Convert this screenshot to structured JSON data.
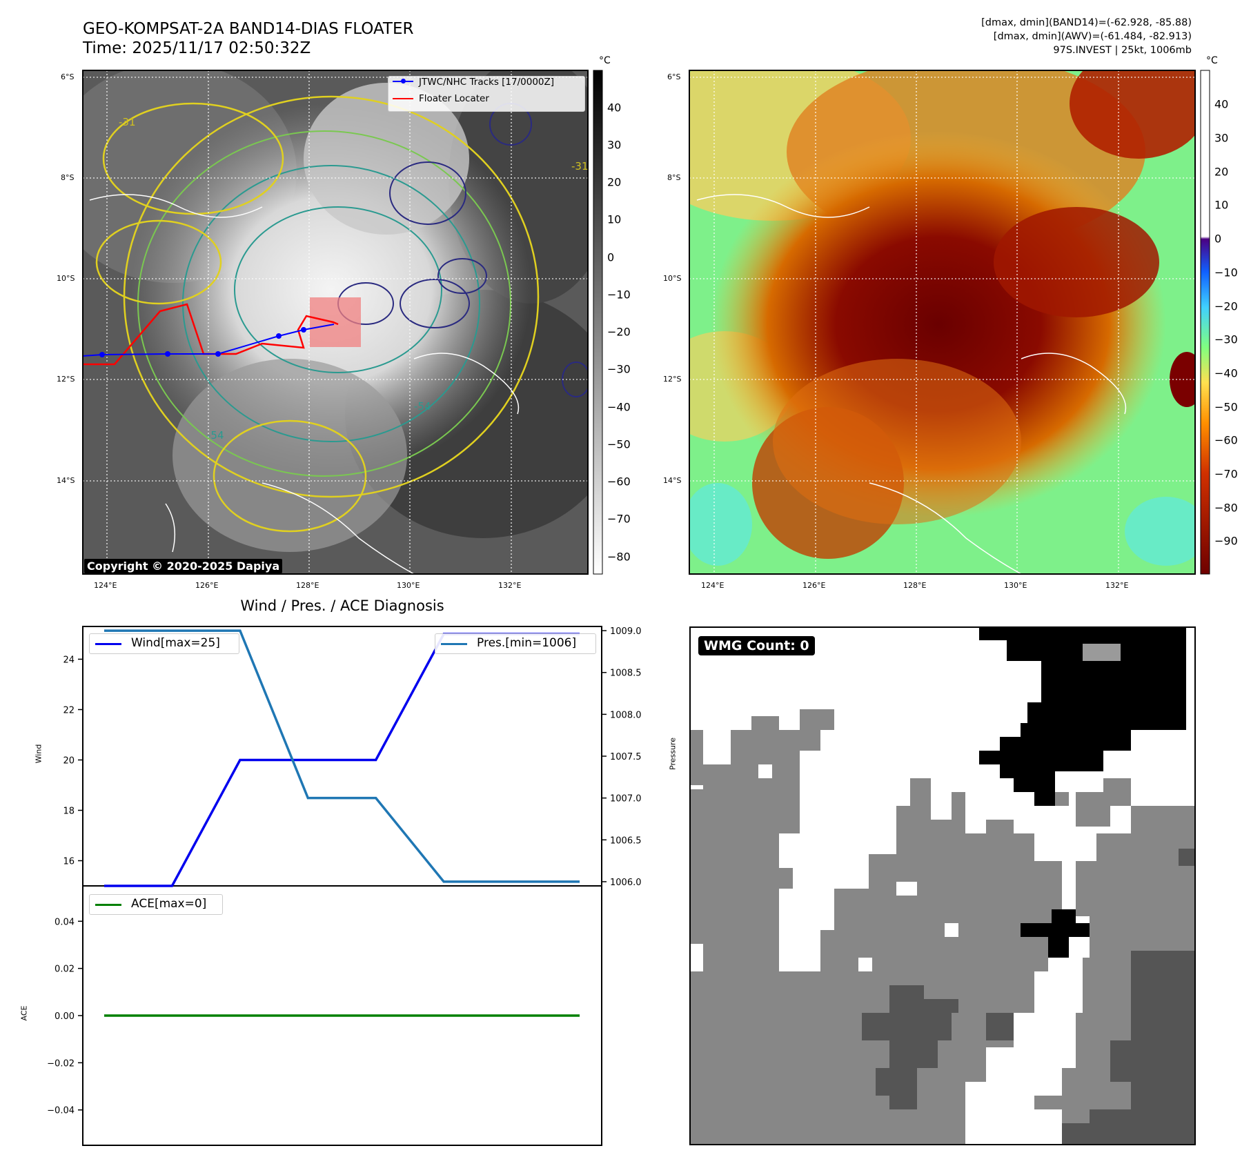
{
  "header": {
    "title_line1": "GEO-KOMPSAT-2A BAND14-DIAS FLOATER",
    "title_line2": "Time: 2025/11/17 02:50:32Z",
    "info_line1": "[dmax, dmin](BAND14)=(-62.928, -85.88)",
    "info_line2": "[dmax, dmin](AWV)=(-61.484, -82.913)",
    "info_line3": "97S.INVEST | 25kt, 1006mb"
  },
  "ir_map": {
    "lat_labels": [
      "6°S",
      "8°S",
      "10°S",
      "12°S",
      "14°S"
    ],
    "lon_labels": [
      "124°E",
      "126°E",
      "128°E",
      "130°E",
      "132°E"
    ],
    "contour_labels": [
      "-31",
      "-54",
      "-54",
      "-31"
    ],
    "legend": {
      "track_label": "JTWC/NHC Tracks [17/0000Z]",
      "locator_label": "Floater Locater"
    },
    "copyright": "Copyright © 2020-2025 Dapiya",
    "colorbar_unit": "°C",
    "colorbar_ticks": [
      "40",
      "30",
      "20",
      "10",
      "0",
      "−10",
      "−20",
      "−30",
      "−40",
      "−50",
      "−60",
      "−70",
      "−80"
    ]
  },
  "awv_map": {
    "lat_labels": [
      "6°S",
      "8°S",
      "10°S",
      "12°S",
      "14°S"
    ],
    "lon_labels": [
      "124°E",
      "126°E",
      "128°E",
      "130°E",
      "132°E"
    ],
    "colorbar_unit": "°C",
    "colorbar_ticks": [
      "40",
      "30",
      "20",
      "10",
      "0",
      "−10",
      "−20",
      "−30",
      "−40",
      "−50",
      "−60",
      "−70",
      "−80",
      "−90"
    ]
  },
  "diag_title": "Wind / Pres. / ACE Diagnosis",
  "colors": {
    "wind": "#0000ee",
    "pressure": "#1f77b4",
    "ace": "#008000",
    "track": "#0000ff",
    "locator": "#ff0000"
  },
  "chart_data": [
    {
      "type": "line",
      "title": "Wind / Pres. / ACE Diagnosis",
      "x": [
        0,
        1,
        2,
        3,
        4,
        5,
        6,
        7
      ],
      "series": [
        {
          "name": "Wind[max=25]",
          "axis": "left",
          "values": [
            15,
            15,
            20,
            20,
            20,
            25,
            25,
            25
          ]
        },
        {
          "name": "Pres.[min=1006]",
          "axis": "right",
          "values": [
            1009,
            1009,
            1009,
            1007,
            1007,
            1006,
            1006,
            1006
          ]
        }
      ],
      "ylabel": "Wind",
      "ylim": [
        15,
        25.3
      ],
      "y_ticks": [
        "16",
        "18",
        "20",
        "22",
        "24"
      ],
      "ylabel_right": "Pressure",
      "ylim_right": [
        1005.95,
        1009.05
      ],
      "y_ticks_right": [
        "1006.0",
        "1006.5",
        "1007.0",
        "1007.5",
        "1008.0",
        "1008.5",
        "1009.0"
      ]
    },
    {
      "type": "line",
      "x": [
        0,
        1,
        2,
        3,
        4,
        5,
        6,
        7
      ],
      "series": [
        {
          "name": "ACE[max=0]",
          "values": [
            0,
            0,
            0,
            0,
            0,
            0,
            0,
            0
          ]
        }
      ],
      "ylabel": "ACE",
      "ylim": [
        -0.055,
        0.055
      ],
      "y_ticks": [
        "0.04",
        "0.02",
        "0.00",
        "−0.02",
        "−0.04"
      ]
    }
  ],
  "wmg": {
    "label": "WMG Count: 0"
  }
}
